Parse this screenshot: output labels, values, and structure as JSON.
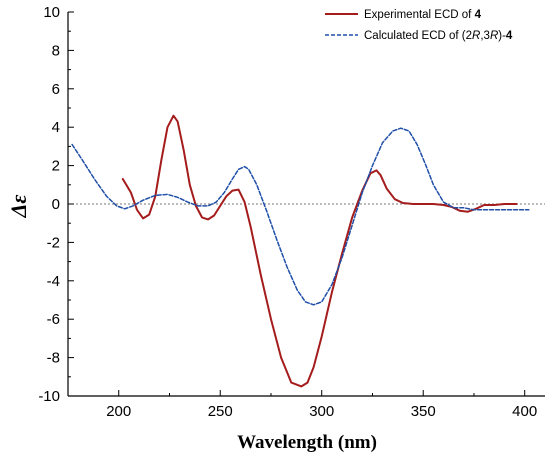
{
  "chart_data": {
    "type": "line",
    "xlabel": "Wavelength (nm)",
    "ylabel": "Δε",
    "xlim": [
      175,
      410
    ],
    "ylim": [
      -10,
      10
    ],
    "x_ticks": [
      "200",
      "250",
      "300",
      "350",
      "400"
    ],
    "y_ticks": [
      "-10",
      "-8",
      "-6",
      "-4",
      "-2",
      "0",
      "2",
      "4",
      "6",
      "8",
      "10"
    ],
    "zero_line": true,
    "legend_position": "top-right",
    "legend": {
      "exp": {
        "label": "Experimental ECD of ",
        "num": "4"
      },
      "calc": {
        "pre": "Calculated ECD of (2",
        "r1": "R",
        "mid": ",3",
        "r2": "R",
        "post": ")-",
        "num": "4"
      }
    },
    "series": [
      {
        "name": "Experimental ECD of 4",
        "color": "#a51c1c",
        "style": "solid",
        "x": [
          202,
          206,
          209,
          212,
          215,
          218,
          221,
          224,
          227,
          229,
          232,
          235,
          238,
          241,
          244,
          247,
          250,
          253,
          256,
          259,
          262,
          265,
          270,
          275,
          280,
          285,
          290,
          293,
          296,
          300,
          305,
          310,
          315,
          320,
          324,
          327,
          329,
          332,
          336,
          340,
          345,
          350,
          355,
          360,
          364,
          368,
          372,
          376,
          380,
          385,
          390,
          396
        ],
        "y": [
          1.3,
          0.6,
          -0.3,
          -0.75,
          -0.55,
          0.4,
          2.3,
          4.0,
          4.6,
          4.3,
          2.8,
          1.0,
          -0.1,
          -0.7,
          -0.8,
          -0.6,
          -0.1,
          0.4,
          0.7,
          0.75,
          0.1,
          -1.2,
          -3.7,
          -6.0,
          -8.0,
          -9.3,
          -9.5,
          -9.3,
          -8.5,
          -6.9,
          -4.6,
          -2.6,
          -0.7,
          0.7,
          1.6,
          1.75,
          1.5,
          0.8,
          0.25,
          0.05,
          0.0,
          0.0,
          0.0,
          -0.05,
          -0.15,
          -0.35,
          -0.4,
          -0.25,
          -0.05,
          -0.05,
          0.0,
          0.0
        ]
      },
      {
        "name": "Calculated ECD of (2R,3R)-4",
        "color": "#1f4fa8",
        "style": "dashed",
        "x": [
          177,
          182,
          188,
          194,
          199,
          203,
          207,
          212,
          218,
          224,
          229,
          234,
          239,
          244,
          248,
          252,
          256,
          259,
          262,
          264,
          268,
          273,
          278,
          283,
          288,
          292,
          296,
          300,
          305,
          310,
          315,
          320,
          325,
          330,
          335,
          339,
          343,
          347,
          351,
          355,
          360,
          365,
          370,
          375,
          380,
          386,
          392,
          402
        ],
        "y": [
          3.1,
          2.3,
          1.3,
          0.4,
          -0.1,
          -0.25,
          -0.1,
          0.2,
          0.45,
          0.5,
          0.35,
          0.1,
          -0.1,
          -0.1,
          0.1,
          0.6,
          1.3,
          1.8,
          1.95,
          1.8,
          1.0,
          -0.4,
          -1.9,
          -3.3,
          -4.5,
          -5.1,
          -5.25,
          -5.1,
          -4.2,
          -2.8,
          -1.1,
          0.6,
          2.0,
          3.2,
          3.8,
          3.95,
          3.8,
          3.1,
          2.1,
          1.0,
          0.1,
          -0.2,
          -0.2,
          -0.3,
          -0.3,
          -0.3,
          -0.3,
          -0.3
        ]
      }
    ]
  }
}
